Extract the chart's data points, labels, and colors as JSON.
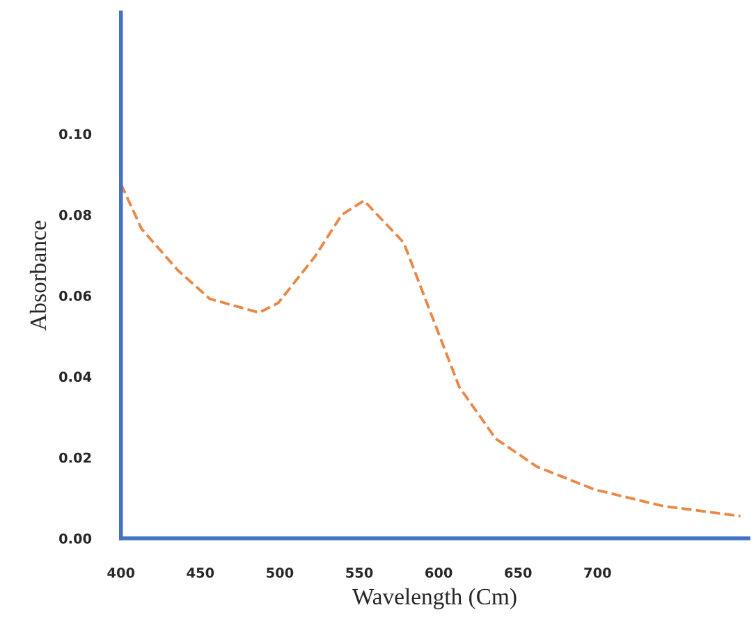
{
  "chart_data": {
    "type": "line",
    "xlabel": "Wavelength (Cm)",
    "ylabel": "Absorbance",
    "series": [
      {
        "color": "#e8894a",
        "x": [
          400,
          413,
          436,
          456,
          487,
          499,
          522,
          539,
          553,
          578,
          596,
          613,
          636,
          662,
          698,
          741,
          790
        ],
        "values": [
          0.0876,
          0.0765,
          0.0662,
          0.0592,
          0.0558,
          0.0582,
          0.0696,
          0.08,
          0.0835,
          0.0731,
          0.0547,
          0.0374,
          0.0246,
          0.0177,
          0.0121,
          0.008,
          0.0055
        ]
      }
    ],
    "xlim": [
      400,
      795
    ],
    "ylim": [
      0,
      0.13
    ],
    "xticks": [
      400,
      450,
      500,
      550,
      600,
      650,
      700
    ],
    "yticks": [
      {
        "value": 0,
        "label": "0.00"
      },
      {
        "value": 0.02,
        "label": "0.02"
      },
      {
        "value": 0.04,
        "label": "0.04"
      },
      {
        "value": 0.06,
        "label": "0.06"
      },
      {
        "value": 0.08,
        "label": "0.08"
      },
      {
        "value": 0.1,
        "label": "0.10"
      }
    ],
    "grid": false,
    "legend": false,
    "line_style": "dashed",
    "marker": "none"
  }
}
